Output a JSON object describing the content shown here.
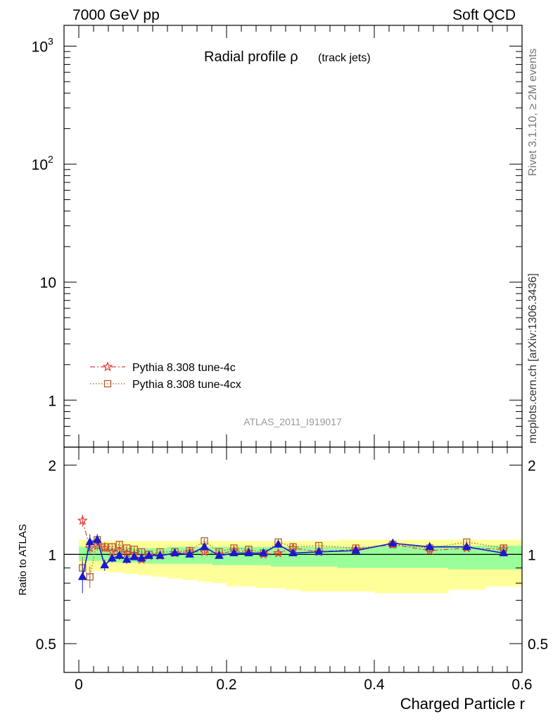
{
  "header": {
    "energy": "7000 GeV pp",
    "category": "Soft QCD",
    "analysis_id": "ATLAS_2011_I919017"
  },
  "side_text": {
    "rivet": "Rivet 3.1.10, ≥ 2M events",
    "mcplots": "mcplots.cern.ch [arXiv:1306.3436]"
  },
  "chart_data": [
    {
      "type": "line",
      "panel": "main",
      "title": "Radial profile ρ",
      "title_note": "(track jets)",
      "yscale": "log",
      "ylim": [
        0.4,
        1500
      ],
      "xlim": [
        -0.02,
        0.6
      ],
      "ytick_labels": [
        "1",
        "10",
        "10",
        "10"
      ],
      "ytick_exponents": [
        "",
        "",
        "2",
        "3"
      ],
      "legend": [
        {
          "name": "Pythia 8.308 tune-4c",
          "color": "#e8403a",
          "marker": "star",
          "line": "dashdot"
        },
        {
          "name": "Pythia 8.308 tune-4cx",
          "color": "#b55a2a",
          "marker": "open-square",
          "line": "dotted"
        }
      ],
      "legend_position": "bottom-left"
    },
    {
      "type": "line",
      "panel": "ratio",
      "ylabel": "Ratio to ATLAS",
      "xlabel": "Charged Particle r",
      "ylim": [
        0.4,
        2.3
      ],
      "yscale": "log",
      "xlim": [
        -0.02,
        0.6
      ],
      "xtick_labels": [
        "0",
        "0.2",
        "0.4",
        "0.6"
      ],
      "ytick_labels": [
        "0.5",
        "1",
        "2"
      ],
      "bands": {
        "bin_edges": [
          0,
          0.01,
          0.02,
          0.03,
          0.04,
          0.05,
          0.06,
          0.07,
          0.08,
          0.09,
          0.1,
          0.12,
          0.14,
          0.16,
          0.18,
          0.2,
          0.22,
          0.24,
          0.26,
          0.28,
          0.3,
          0.35,
          0.4,
          0.45,
          0.5,
          0.55,
          0.6
        ],
        "green_low": [
          0.95,
          0.95,
          0.95,
          0.95,
          0.94,
          0.94,
          0.94,
          0.94,
          0.94,
          0.93,
          0.93,
          0.93,
          0.93,
          0.93,
          0.92,
          0.92,
          0.92,
          0.92,
          0.91,
          0.91,
          0.91,
          0.9,
          0.9,
          0.9,
          0.89,
          0.89
        ],
        "green_high": [
          1.06,
          1.06,
          1.06,
          1.05,
          1.05,
          1.05,
          1.05,
          1.05,
          1.05,
          1.05,
          1.05,
          1.06,
          1.06,
          1.06,
          1.06,
          1.06,
          1.06,
          1.06,
          1.06,
          1.06,
          1.06,
          1.06,
          1.07,
          1.07,
          1.07,
          1.07
        ],
        "yellow_low": [
          0.88,
          0.88,
          0.88,
          0.88,
          0.87,
          0.87,
          0.86,
          0.86,
          0.85,
          0.85,
          0.84,
          0.83,
          0.82,
          0.81,
          0.8,
          0.78,
          0.78,
          0.77,
          0.77,
          0.76,
          0.75,
          0.75,
          0.74,
          0.74,
          0.76,
          0.78
        ],
        "yellow_high": [
          1.12,
          1.12,
          1.12,
          1.11,
          1.11,
          1.11,
          1.11,
          1.11,
          1.11,
          1.11,
          1.11,
          1.11,
          1.11,
          1.11,
          1.11,
          1.11,
          1.11,
          1.11,
          1.11,
          1.11,
          1.11,
          1.12,
          1.12,
          1.12,
          1.12,
          1.12
        ]
      },
      "series": [
        {
          "name": "Pythia 8.308 tune-4c",
          "color": "#e8403a",
          "marker": "star",
          "x": [
            0.005,
            0.015,
            0.025,
            0.035,
            0.045,
            0.055,
            0.065,
            0.075,
            0.085,
            0.095,
            0.11,
            0.13,
            0.15,
            0.17,
            0.19,
            0.21,
            0.23,
            0.25,
            0.27,
            0.29,
            0.325,
            0.375,
            0.425,
            0.475,
            0.525,
            0.575
          ],
          "y": [
            1.3,
            1.05,
            1.07,
            1.05,
            1.02,
            1.03,
            1.01,
            1.0,
            0.96,
            0.99,
            0.99,
            1.01,
            1.02,
            1.02,
            1.0,
            1.03,
            1.02,
            1.0,
            1.01,
            1.05,
            1.02,
            1.04,
            1.08,
            1.03,
            1.05,
            1.04
          ],
          "yerr": [
            0.06,
            0.05,
            0.04,
            0.03,
            0.03,
            0.02,
            0.02,
            0.02,
            0.02,
            0.02,
            0.02,
            0.02,
            0.02,
            0.02,
            0.02,
            0.02,
            0.02,
            0.02,
            0.02,
            0.02,
            0.02,
            0.02,
            0.02,
            0.02,
            0.02,
            0.02
          ]
        },
        {
          "name": "Pythia 8.308 tune-4cx",
          "color": "#b55a2a",
          "marker": "open-square",
          "x": [
            0.005,
            0.015,
            0.025,
            0.035,
            0.045,
            0.055,
            0.065,
            0.075,
            0.085,
            0.095,
            0.11,
            0.13,
            0.15,
            0.17,
            0.19,
            0.21,
            0.23,
            0.25,
            0.27,
            0.29,
            0.325,
            0.375,
            0.425,
            0.475,
            0.525,
            0.575
          ],
          "y": [
            0.9,
            0.84,
            1.12,
            1.06,
            1.06,
            1.08,
            1.05,
            1.04,
            1.02,
            1.0,
            1.02,
            1.02,
            1.03,
            1.11,
            1.02,
            1.05,
            1.04,
            1.01,
            1.1,
            1.06,
            1.07,
            1.05,
            1.08,
            1.05,
            1.1,
            1.05
          ],
          "yerr": [
            0.08,
            0.07,
            0.05,
            0.04,
            0.03,
            0.03,
            0.02,
            0.02,
            0.02,
            0.02,
            0.02,
            0.02,
            0.02,
            0.02,
            0.02,
            0.02,
            0.02,
            0.02,
            0.02,
            0.02,
            0.02,
            0.02,
            0.02,
            0.02,
            0.02,
            0.02
          ]
        },
        {
          "name": "",
          "color": "#1a1acc",
          "marker": "filled-triangle",
          "x": [
            0.005,
            0.015,
            0.025,
            0.035,
            0.045,
            0.055,
            0.065,
            0.075,
            0.085,
            0.095,
            0.11,
            0.13,
            0.15,
            0.17,
            0.19,
            0.21,
            0.23,
            0.25,
            0.27,
            0.29,
            0.325,
            0.375,
            0.425,
            0.475,
            0.525,
            0.575
          ],
          "y": [
            0.84,
            1.1,
            1.12,
            0.92,
            0.97,
            0.99,
            0.96,
            0.98,
            0.97,
            0.99,
            0.99,
            1.01,
            1.0,
            1.06,
            0.99,
            1.01,
            1.01,
            1.01,
            1.08,
            1.01,
            1.02,
            1.03,
            1.09,
            1.06,
            1.06,
            1.01
          ],
          "yerr": [
            0.1,
            0.07,
            0.05,
            0.04,
            0.03,
            0.03,
            0.03,
            0.02,
            0.02,
            0.02,
            0.02,
            0.02,
            0.02,
            0.02,
            0.02,
            0.02,
            0.02,
            0.02,
            0.02,
            0.02,
            0.02,
            0.02,
            0.02,
            0.02,
            0.02,
            0.02
          ]
        }
      ]
    }
  ]
}
